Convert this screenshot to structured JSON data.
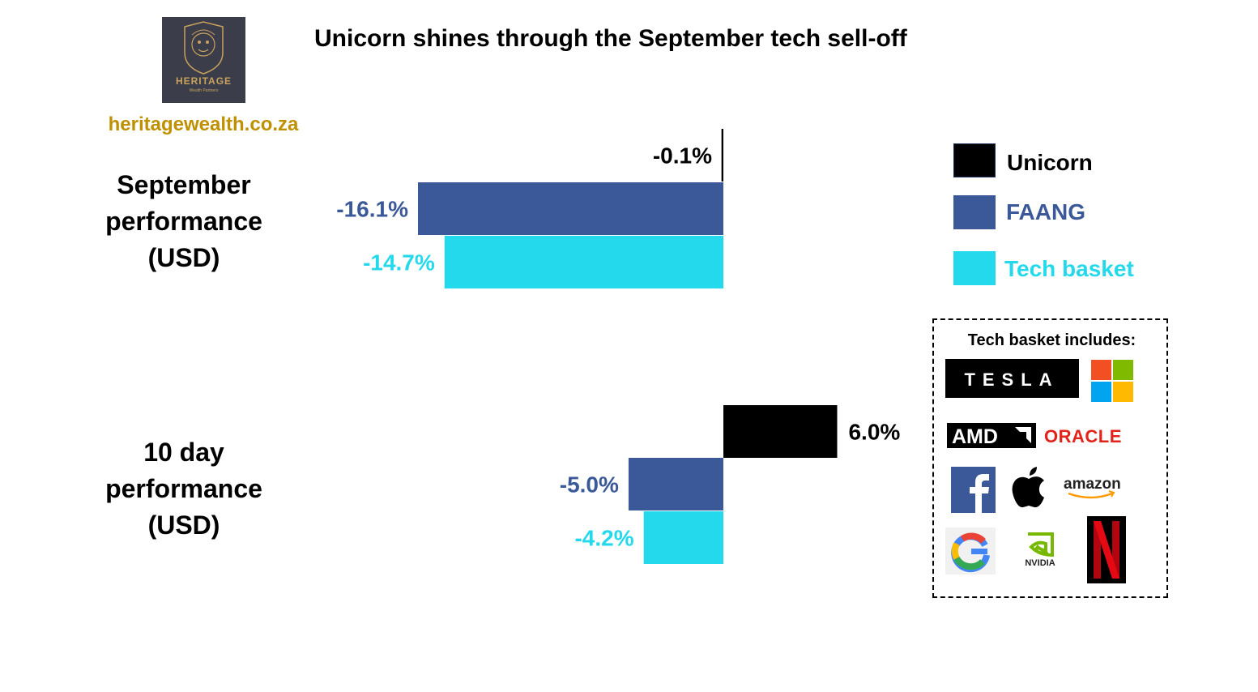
{
  "header": {
    "title": "Unicorn shines through the September tech sell-off",
    "website": "heritagewealth.co.za",
    "logo_word": "HERITAGE",
    "logo_sub": "Wealth Partners"
  },
  "colors": {
    "unicorn": "#000000",
    "faang": "#3b5998",
    "tech_basket": "#25d9ec",
    "website": "#bf9000"
  },
  "legend": [
    {
      "label": "Unicorn",
      "color": "#000000"
    },
    {
      "label": "FAANG",
      "color": "#3b5998"
    },
    {
      "label": "Tech basket",
      "color": "#25d9ec"
    }
  ],
  "basket": {
    "title": "Tech basket includes:",
    "brands": [
      {
        "name": "TESLA",
        "icon": "tesla-logo"
      },
      {
        "name": "Microsoft",
        "icon": "microsoft-logo"
      },
      {
        "name": "AMD",
        "icon": "amd-logo"
      },
      {
        "name": "ORACLE",
        "icon": "oracle-logo"
      },
      {
        "name": "Facebook",
        "icon": "facebook-logo"
      },
      {
        "name": "Apple",
        "icon": "apple-logo"
      },
      {
        "name": "amazon",
        "icon": "amazon-logo"
      },
      {
        "name": "Google",
        "icon": "google-logo"
      },
      {
        "name": "NVIDIA",
        "icon": "nvidia-logo"
      },
      {
        "name": "Netflix",
        "icon": "netflix-logo"
      }
    ]
  },
  "chart_data": {
    "type": "bar",
    "orientation": "horizontal",
    "title": "Unicorn shines through the September tech sell-off",
    "categories": [
      "September performance (USD)",
      "10 day performance (USD)"
    ],
    "category_lines": [
      [
        "September",
        "performance",
        "(USD)"
      ],
      [
        "10 day",
        "performance",
        "(USD)"
      ]
    ],
    "series": [
      {
        "name": "Unicorn",
        "values": [
          -0.1,
          6.0
        ],
        "labels": [
          "-0.1%",
          "6.0%"
        ],
        "color": "#000000"
      },
      {
        "name": "FAANG",
        "values": [
          -16.1,
          -5.0
        ],
        "labels": [
          "-16.1%",
          "-5.0%"
        ],
        "color": "#3b5998"
      },
      {
        "name": "Tech basket",
        "values": [
          -14.7,
          -4.2
        ],
        "labels": [
          "-14.7%",
          "-4.2%"
        ],
        "color": "#25d9ec"
      }
    ],
    "unit": "%",
    "grid": false,
    "legend_position": "right"
  }
}
